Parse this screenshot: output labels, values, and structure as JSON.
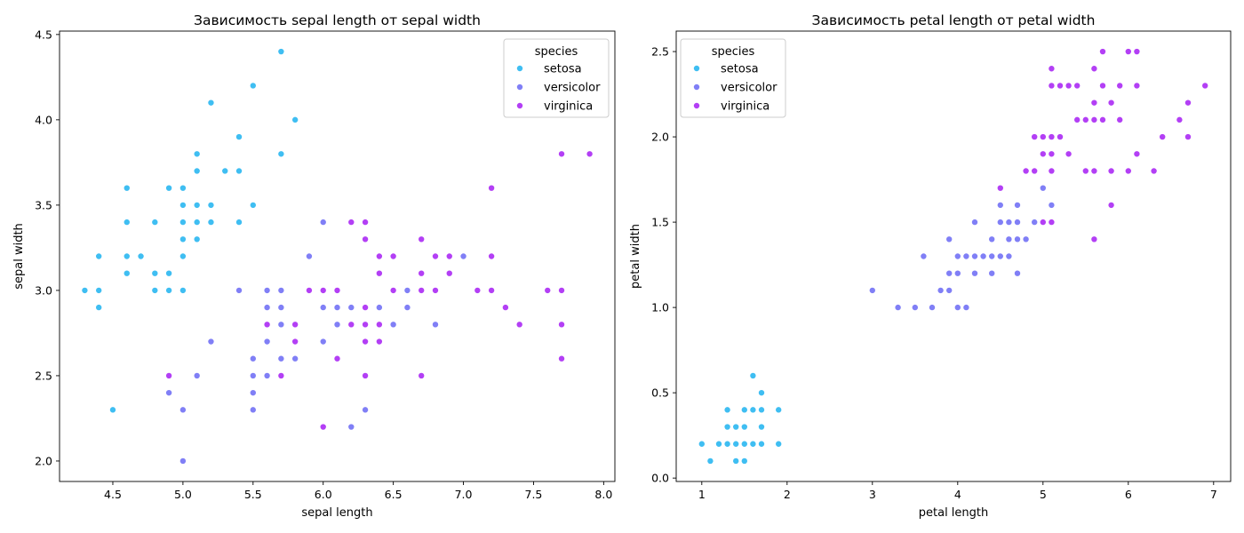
{
  "colors": {
    "setosa": "#3fbef2",
    "versicolor": "#807ff6",
    "virginica": "#b33ff5"
  },
  "chart_data": [
    {
      "type": "scatter",
      "title": "Зависимость sepal length от sepal width",
      "xlabel": "sepal length",
      "ylabel": "sepal width",
      "xlim": [
        4.12,
        8.08
      ],
      "ylim": [
        1.88,
        4.52
      ],
      "xticks": [
        "4.5",
        "5.0",
        "5.5",
        "6.0",
        "6.5",
        "7.0",
        "7.5",
        "8.0"
      ],
      "yticks": [
        "2.0",
        "2.5",
        "3.0",
        "3.5",
        "4.0",
        "4.5"
      ],
      "legend": {
        "title": "species",
        "placement": "top-right"
      },
      "series": [
        {
          "name": "setosa",
          "points": [
            [
              4.3,
              3.0
            ],
            [
              4.4,
              3.2
            ],
            [
              4.4,
              3.0
            ],
            [
              4.4,
              2.9
            ],
            [
              4.5,
              2.3
            ],
            [
              4.6,
              3.6
            ],
            [
              4.6,
              3.4
            ],
            [
              4.6,
              3.2
            ],
            [
              4.6,
              3.1
            ],
            [
              4.7,
              3.2
            ],
            [
              4.8,
              3.4
            ],
            [
              4.8,
              3.1
            ],
            [
              4.8,
              3.0
            ],
            [
              4.9,
              3.6
            ],
            [
              4.9,
              3.1
            ],
            [
              4.9,
              3.0
            ],
            [
              5.0,
              3.6
            ],
            [
              5.0,
              3.5
            ],
            [
              5.0,
              3.4
            ],
            [
              5.0,
              3.3
            ],
            [
              5.0,
              3.2
            ],
            [
              5.0,
              3.0
            ],
            [
              5.1,
              3.8
            ],
            [
              5.1,
              3.7
            ],
            [
              5.1,
              3.5
            ],
            [
              5.1,
              3.4
            ],
            [
              5.1,
              3.3
            ],
            [
              5.2,
              4.1
            ],
            [
              5.2,
              3.5
            ],
            [
              5.2,
              3.4
            ],
            [
              5.3,
              3.7
            ],
            [
              5.4,
              3.9
            ],
            [
              5.4,
              3.7
            ],
            [
              5.4,
              3.4
            ],
            [
              5.5,
              4.2
            ],
            [
              5.5,
              3.5
            ],
            [
              5.7,
              4.4
            ],
            [
              5.7,
              3.8
            ],
            [
              5.8,
              4.0
            ]
          ]
        },
        {
          "name": "versicolor",
          "points": [
            [
              4.9,
              2.4
            ],
            [
              5.0,
              2.3
            ],
            [
              5.0,
              2.0
            ],
            [
              5.1,
              2.5
            ],
            [
              5.2,
              2.7
            ],
            [
              5.4,
              3.0
            ],
            [
              5.5,
              2.6
            ],
            [
              5.5,
              2.5
            ],
            [
              5.5,
              2.4
            ],
            [
              5.5,
              2.3
            ],
            [
              5.6,
              3.0
            ],
            [
              5.6,
              2.9
            ],
            [
              5.6,
              2.7
            ],
            [
              5.6,
              2.5
            ],
            [
              5.7,
              3.0
            ],
            [
              5.7,
              2.9
            ],
            [
              5.7,
              2.8
            ],
            [
              5.7,
              2.6
            ],
            [
              5.8,
              2.7
            ],
            [
              5.8,
              2.6
            ],
            [
              5.9,
              3.2
            ],
            [
              5.9,
              3.0
            ],
            [
              6.0,
              3.4
            ],
            [
              6.0,
              2.9
            ],
            [
              6.0,
              2.7
            ],
            [
              6.0,
              2.2
            ],
            [
              6.1,
              3.0
            ],
            [
              6.1,
              2.9
            ],
            [
              6.1,
              2.8
            ],
            [
              6.2,
              2.9
            ],
            [
              6.2,
              2.2
            ],
            [
              6.3,
              3.3
            ],
            [
              6.3,
              2.5
            ],
            [
              6.3,
              2.3
            ],
            [
              6.4,
              3.2
            ],
            [
              6.4,
              2.9
            ],
            [
              6.5,
              2.8
            ],
            [
              6.6,
              3.0
            ],
            [
              6.6,
              2.9
            ],
            [
              6.7,
              3.1
            ],
            [
              6.7,
              3.0
            ],
            [
              6.8,
              2.8
            ],
            [
              6.9,
              3.1
            ],
            [
              7.0,
              3.2
            ]
          ]
        },
        {
          "name": "virginica",
          "points": [
            [
              4.9,
              2.5
            ],
            [
              5.6,
              2.8
            ],
            [
              5.7,
              2.5
            ],
            [
              5.8,
              2.8
            ],
            [
              5.8,
              2.7
            ],
            [
              5.9,
              3.0
            ],
            [
              6.0,
              3.0
            ],
            [
              6.0,
              2.2
            ],
            [
              6.1,
              3.0
            ],
            [
              6.1,
              2.6
            ],
            [
              6.2,
              3.4
            ],
            [
              6.2,
              2.8
            ],
            [
              6.3,
              3.4
            ],
            [
              6.3,
              3.3
            ],
            [
              6.3,
              2.9
            ],
            [
              6.3,
              2.8
            ],
            [
              6.3,
              2.7
            ],
            [
              6.3,
              2.5
            ],
            [
              6.4,
              3.2
            ],
            [
              6.4,
              3.1
            ],
            [
              6.4,
              2.8
            ],
            [
              6.4,
              2.7
            ],
            [
              6.5,
              3.2
            ],
            [
              6.5,
              3.0
            ],
            [
              6.7,
              3.3
            ],
            [
              6.7,
              3.1
            ],
            [
              6.7,
              3.0
            ],
            [
              6.7,
              2.5
            ],
            [
              6.8,
              3.2
            ],
            [
              6.8,
              3.0
            ],
            [
              6.9,
              3.2
            ],
            [
              6.9,
              3.1
            ],
            [
              7.1,
              3.0
            ],
            [
              7.2,
              3.6
            ],
            [
              7.2,
              3.2
            ],
            [
              7.2,
              3.0
            ],
            [
              7.3,
              2.9
            ],
            [
              7.4,
              2.8
            ],
            [
              7.6,
              3.0
            ],
            [
              7.7,
              3.8
            ],
            [
              7.7,
              3.0
            ],
            [
              7.7,
              2.8
            ],
            [
              7.7,
              2.6
            ],
            [
              7.9,
              3.8
            ]
          ]
        }
      ]
    },
    {
      "type": "scatter",
      "title": "Зависимость petal length от petal width",
      "xlabel": "petal length",
      "ylabel": "petal width",
      "xlim": [
        0.7,
        7.2
      ],
      "ylim": [
        -0.02,
        2.62
      ],
      "xticks": [
        "1",
        "2",
        "3",
        "4",
        "5",
        "6",
        "7"
      ],
      "yticks": [
        "0.0",
        "0.5",
        "1.0",
        "1.5",
        "2.0",
        "2.5"
      ],
      "legend": {
        "title": "species",
        "placement": "top-left"
      },
      "series": [
        {
          "name": "setosa",
          "points": [
            [
              1.0,
              0.2
            ],
            [
              1.1,
              0.1
            ],
            [
              1.2,
              0.2
            ],
            [
              1.3,
              0.4
            ],
            [
              1.3,
              0.3
            ],
            [
              1.3,
              0.2
            ],
            [
              1.4,
              0.3
            ],
            [
              1.4,
              0.2
            ],
            [
              1.4,
              0.1
            ],
            [
              1.5,
              0.4
            ],
            [
              1.5,
              0.3
            ],
            [
              1.5,
              0.2
            ],
            [
              1.5,
              0.1
            ],
            [
              1.6,
              0.6
            ],
            [
              1.6,
              0.4
            ],
            [
              1.6,
              0.2
            ],
            [
              1.7,
              0.5
            ],
            [
              1.7,
              0.4
            ],
            [
              1.7,
              0.3
            ],
            [
              1.7,
              0.2
            ],
            [
              1.9,
              0.4
            ],
            [
              1.9,
              0.2
            ]
          ]
        },
        {
          "name": "versicolor",
          "points": [
            [
              3.0,
              1.1
            ],
            [
              3.3,
              1.0
            ],
            [
              3.5,
              1.0
            ],
            [
              3.6,
              1.3
            ],
            [
              3.7,
              1.0
            ],
            [
              3.8,
              1.1
            ],
            [
              3.9,
              1.4
            ],
            [
              3.9,
              1.2
            ],
            [
              3.9,
              1.1
            ],
            [
              4.0,
              1.3
            ],
            [
              4.0,
              1.2
            ],
            [
              4.0,
              1.0
            ],
            [
              4.1,
              1.3
            ],
            [
              4.1,
              1.0
            ],
            [
              4.2,
              1.5
            ],
            [
              4.2,
              1.3
            ],
            [
              4.2,
              1.2
            ],
            [
              4.3,
              1.3
            ],
            [
              4.4,
              1.4
            ],
            [
              4.4,
              1.3
            ],
            [
              4.4,
              1.2
            ],
            [
              4.5,
              1.6
            ],
            [
              4.5,
              1.5
            ],
            [
              4.5,
              1.3
            ],
            [
              4.6,
              1.5
            ],
            [
              4.6,
              1.4
            ],
            [
              4.6,
              1.3
            ],
            [
              4.7,
              1.6
            ],
            [
              4.7,
              1.5
            ],
            [
              4.7,
              1.4
            ],
            [
              4.7,
              1.2
            ],
            [
              4.8,
              1.4
            ],
            [
              4.9,
              1.5
            ],
            [
              5.0,
              1.7
            ],
            [
              5.1,
              1.6
            ]
          ]
        },
        {
          "name": "virginica",
          "points": [
            [
              4.5,
              1.7
            ],
            [
              4.8,
              1.8
            ],
            [
              4.9,
              2.0
            ],
            [
              4.9,
              1.8
            ],
            [
              5.0,
              2.0
            ],
            [
              5.0,
              1.9
            ],
            [
              5.0,
              1.5
            ],
            [
              5.1,
              2.4
            ],
            [
              5.1,
              2.3
            ],
            [
              5.1,
              2.0
            ],
            [
              5.1,
              1.9
            ],
            [
              5.1,
              1.8
            ],
            [
              5.1,
              1.5
            ],
            [
              5.2,
              2.3
            ],
            [
              5.2,
              2.0
            ],
            [
              5.3,
              2.3
            ],
            [
              5.3,
              1.9
            ],
            [
              5.4,
              2.3
            ],
            [
              5.4,
              2.1
            ],
            [
              5.5,
              2.1
            ],
            [
              5.5,
              1.8
            ],
            [
              5.6,
              2.4
            ],
            [
              5.6,
              2.2
            ],
            [
              5.6,
              2.1
            ],
            [
              5.6,
              1.8
            ],
            [
              5.6,
              1.4
            ],
            [
              5.7,
              2.5
            ],
            [
              5.7,
              2.3
            ],
            [
              5.7,
              2.1
            ],
            [
              5.8,
              2.2
            ],
            [
              5.8,
              1.8
            ],
            [
              5.8,
              1.6
            ],
            [
              5.9,
              2.3
            ],
            [
              5.9,
              2.1
            ],
            [
              6.0,
              2.5
            ],
            [
              6.0,
              1.8
            ],
            [
              6.1,
              2.5
            ],
            [
              6.1,
              2.3
            ],
            [
              6.1,
              1.9
            ],
            [
              6.3,
              1.8
            ],
            [
              6.4,
              2.0
            ],
            [
              6.6,
              2.1
            ],
            [
              6.7,
              2.2
            ],
            [
              6.7,
              2.0
            ],
            [
              6.9,
              2.3
            ]
          ]
        }
      ]
    }
  ]
}
